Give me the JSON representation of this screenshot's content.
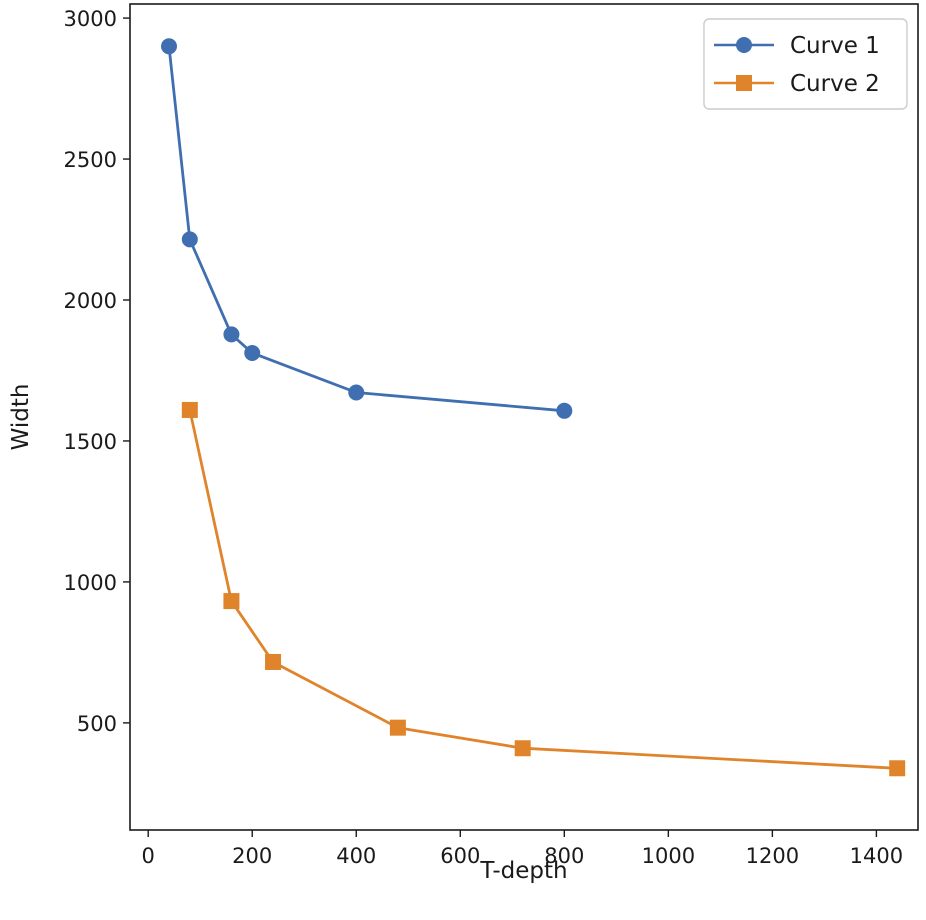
{
  "chart_data": {
    "type": "line",
    "title": "",
    "xlabel": "T-depth",
    "ylabel": "Width",
    "xlim": [
      -35,
      1480
    ],
    "ylim": [
      120,
      3050
    ],
    "xticks": [
      0,
      200,
      400,
      600,
      800,
      1000,
      1200,
      1400
    ],
    "yticks": [
      500,
      1000,
      1500,
      2000,
      2500,
      3000
    ],
    "grid": false,
    "legend_position": "top-right",
    "series": [
      {
        "name": "Curve 1",
        "marker": "circle",
        "color": "#3f6fb0",
        "x": [
          40,
          80,
          160,
          200,
          400,
          800
        ],
        "y": [
          2900,
          2215,
          1878,
          1812,
          1672,
          1607
        ]
      },
      {
        "name": "Curve 2",
        "marker": "square",
        "color": "#e0842b",
        "x": [
          80,
          160,
          240,
          480,
          720,
          1440
        ],
        "y": [
          1610,
          932,
          716,
          483,
          410,
          339
        ]
      }
    ]
  }
}
